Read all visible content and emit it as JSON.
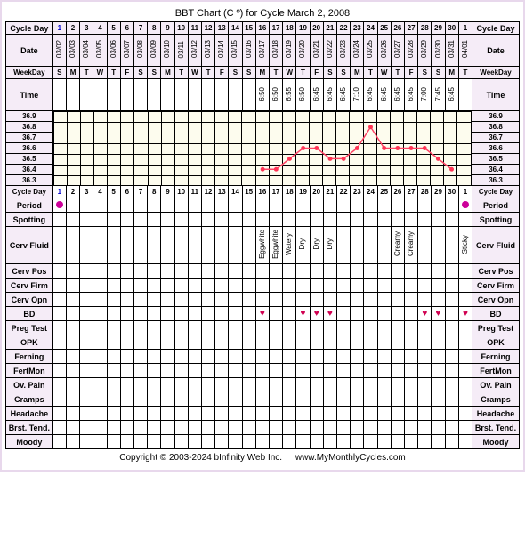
{
  "title": "BBT Chart (C º) for Cycle March 2, 2008",
  "labels": {
    "cycle_day": "Cycle Day",
    "date": "Date",
    "weekday": "WeekDay",
    "time": "Time",
    "period": "Period",
    "spotting": "Spotting",
    "cerv_fluid": "Cerv Fluid",
    "cerv_pos": "Cerv Pos",
    "cerv_firm": "Cerv Firm",
    "cerv_opn": "Cerv Opn",
    "bd": "BD",
    "preg_test": "Preg Test",
    "opk": "OPK",
    "ferning": "Ferning",
    "fertmon": "FertMon",
    "ovpain": "Ov. Pain",
    "cramps": "Cramps",
    "headache": "Headache",
    "brst": "Brst. Tend.",
    "moody": "Moody"
  },
  "temp_scale": [
    "36.9",
    "36.8",
    "36.7",
    "36.6",
    "36.5",
    "36.4",
    "36.3"
  ],
  "days": [
    1,
    2,
    3,
    4,
    5,
    6,
    7,
    8,
    9,
    10,
    11,
    12,
    13,
    14,
    15,
    16,
    17,
    18,
    19,
    20,
    21,
    22,
    23,
    24,
    25,
    26,
    27,
    28,
    29,
    30,
    1
  ],
  "dates": [
    "03/02",
    "03/03",
    "03/04",
    "03/05",
    "03/06",
    "03/07",
    "03/08",
    "03/09",
    "03/10",
    "03/11",
    "03/12",
    "03/13",
    "03/14",
    "03/15",
    "03/16",
    "03/17",
    "03/18",
    "03/19",
    "03/20",
    "03/21",
    "03/22",
    "03/23",
    "03/24",
    "03/25",
    "03/26",
    "03/27",
    "03/28",
    "03/29",
    "03/30",
    "03/31",
    "04/01"
  ],
  "weekdays": [
    "S",
    "M",
    "T",
    "W",
    "T",
    "F",
    "S",
    "S",
    "M",
    "T",
    "W",
    "T",
    "F",
    "S",
    "S",
    "M",
    "T",
    "W",
    "T",
    "F",
    "S",
    "S",
    "M",
    "T",
    "W",
    "T",
    "F",
    "S",
    "S",
    "M",
    "T"
  ],
  "times": {
    "16": "6:50",
    "17": "6:50",
    "18": "6:55",
    "19": "6:50",
    "20": "6:45",
    "21": "6:45",
    "22": "6:45",
    "23": "7:10",
    "24": "6:45",
    "25": "6:45",
    "26": "6:45",
    "27": "6:45",
    "28": "7:00",
    "29": "7:45",
    "30": "6:45"
  },
  "temps": {
    "16": 36.4,
    "17": 36.4,
    "18": 36.5,
    "19": 36.6,
    "20": 36.6,
    "21": 36.5,
    "22": 36.5,
    "23": 36.6,
    "24": 36.8,
    "25": 36.6,
    "26": 36.6,
    "27": 36.6,
    "28": 36.6,
    "29": 36.5,
    "30": 36.4
  },
  "period_days": [
    1,
    31
  ],
  "period_color": "#cc0099",
  "cerv_fluid": {
    "16": "Eggwhite",
    "17": "Eggwhite",
    "18": "Watery",
    "19": "Dry",
    "20": "Dry",
    "21": "Dry",
    "26": "Creamy",
    "27": "Creamy",
    "31": "Sticky"
  },
  "bd_days": [
    16,
    19,
    20,
    21,
    28,
    29,
    31
  ],
  "accent": "#f5ecf7",
  "line_color": "#ff4466",
  "marker_color": "#ff3355",
  "footer_copyright": "Copyright © 2003-2024 bInfinity Web Inc.",
  "footer_link": "www.MyMonthlyCycles.com",
  "day1_color": "#0000cc"
}
